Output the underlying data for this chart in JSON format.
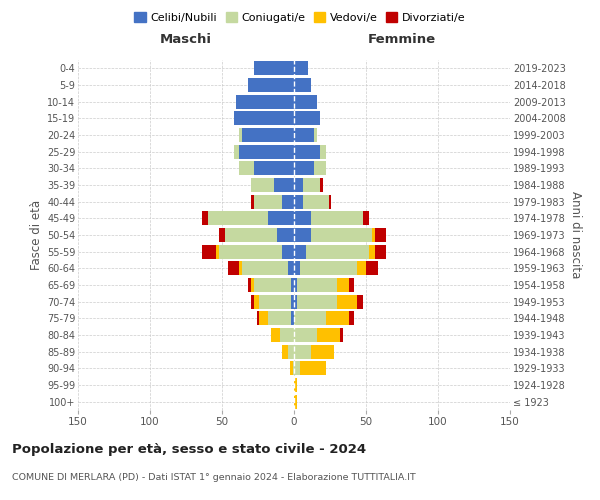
{
  "age_groups": [
    "100+",
    "95-99",
    "90-94",
    "85-89",
    "80-84",
    "75-79",
    "70-74",
    "65-69",
    "60-64",
    "55-59",
    "50-54",
    "45-49",
    "40-44",
    "35-39",
    "30-34",
    "25-29",
    "20-24",
    "15-19",
    "10-14",
    "5-9",
    "0-4"
  ],
  "birth_years": [
    "≤ 1923",
    "1924-1928",
    "1929-1933",
    "1934-1938",
    "1939-1943",
    "1944-1948",
    "1949-1953",
    "1954-1958",
    "1959-1963",
    "1964-1968",
    "1969-1973",
    "1974-1978",
    "1979-1983",
    "1984-1988",
    "1989-1993",
    "1994-1998",
    "1999-2003",
    "2004-2008",
    "2009-2013",
    "2014-2018",
    "2019-2023"
  ],
  "males": {
    "celibi": [
      0,
      0,
      0,
      0,
      0,
      2,
      2,
      2,
      4,
      8,
      12,
      18,
      8,
      14,
      28,
      38,
      36,
      42,
      40,
      32,
      28
    ],
    "coniugati": [
      0,
      0,
      1,
      4,
      10,
      16,
      22,
      26,
      32,
      44,
      36,
      42,
      20,
      16,
      10,
      4,
      2,
      0,
      0,
      0,
      0
    ],
    "vedovi": [
      0,
      0,
      2,
      4,
      6,
      6,
      4,
      2,
      2,
      2,
      0,
      0,
      0,
      0,
      0,
      0,
      0,
      0,
      0,
      0,
      0
    ],
    "divorziati": [
      0,
      0,
      0,
      0,
      0,
      2,
      2,
      2,
      8,
      10,
      4,
      4,
      2,
      0,
      0,
      0,
      0,
      0,
      0,
      0,
      0
    ]
  },
  "females": {
    "nubili": [
      0,
      0,
      0,
      0,
      0,
      0,
      2,
      2,
      4,
      8,
      12,
      12,
      6,
      6,
      14,
      18,
      14,
      18,
      16,
      12,
      10
    ],
    "coniugate": [
      0,
      0,
      4,
      12,
      16,
      22,
      28,
      28,
      40,
      44,
      42,
      36,
      18,
      12,
      8,
      4,
      2,
      0,
      0,
      0,
      0
    ],
    "vedove": [
      2,
      2,
      18,
      16,
      16,
      16,
      14,
      8,
      6,
      4,
      2,
      0,
      0,
      0,
      0,
      0,
      0,
      0,
      0,
      0,
      0
    ],
    "divorziate": [
      0,
      0,
      0,
      0,
      2,
      4,
      4,
      4,
      8,
      8,
      8,
      4,
      2,
      2,
      0,
      0,
      0,
      0,
      0,
      0,
      0
    ]
  },
  "colors": {
    "celibi": "#4472c4",
    "coniugati": "#c5d9a0",
    "vedovi": "#ffc000",
    "divorziati": "#c00000"
  },
  "title": "Popolazione per età, sesso e stato civile - 2024",
  "subtitle": "COMUNE DI MERLARA (PD) - Dati ISTAT 1° gennaio 2024 - Elaborazione TUTTITALIA.IT",
  "xlabel_left": "Maschi",
  "xlabel_right": "Femmine",
  "ylabel_left": "Fasce di età",
  "ylabel_right": "Anni di nascita",
  "xlim": 150,
  "legend_labels": [
    "Celibi/Nubili",
    "Coniugati/e",
    "Vedovi/e",
    "Divorziati/e"
  ],
  "bg_color": "#ffffff",
  "grid_color": "#cccccc"
}
